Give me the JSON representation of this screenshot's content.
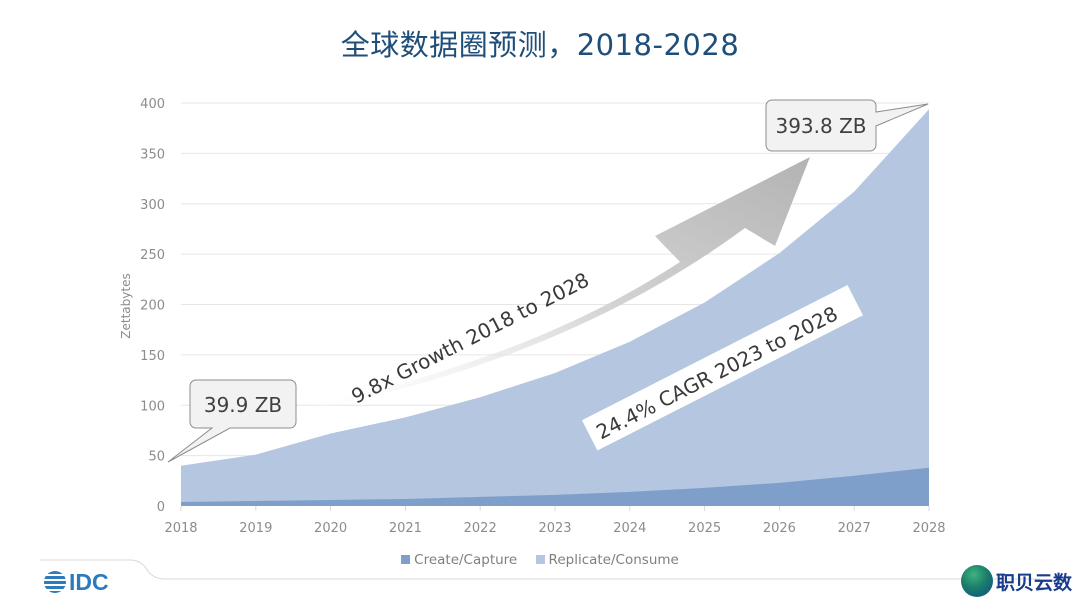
{
  "title": "全球数据圈预测，2018-2028",
  "chart_data": {
    "type": "area",
    "stacked": true,
    "title": "全球数据圈预测，2018-2028",
    "xlabel": "",
    "ylabel": "Zettabytes",
    "ylim": [
      0,
      400
    ],
    "yticks": [
      0,
      50,
      100,
      150,
      200,
      250,
      300,
      350,
      400
    ],
    "categories": [
      "2018",
      "2019",
      "2020",
      "2021",
      "2022",
      "2023",
      "2024",
      "2025",
      "2026",
      "2027",
      "2028"
    ],
    "series": [
      {
        "name": "Create/Capture",
        "color": "#7f9fcb",
        "values": [
          4,
          5,
          6,
          7,
          9,
          11,
          14,
          18,
          23,
          30,
          38
        ]
      },
      {
        "name": "Replicate/Consume",
        "color": "#b4c6e0",
        "values": [
          35.9,
          46,
          66,
          81,
          99,
          121,
          149,
          184,
          228,
          282,
          355.8
        ]
      }
    ],
    "totals": [
      39.9,
      51,
      72,
      88,
      108,
      132,
      163,
      202,
      251,
      312,
      393.8
    ],
    "grid": true,
    "legend_position": "bottom",
    "annotations": [
      {
        "text": "39.9 ZB",
        "type": "callout",
        "target": "2018"
      },
      {
        "text": "393.8 ZB",
        "type": "callout",
        "target": "2028"
      },
      {
        "text": "9.8x Growth 2018 to 2028",
        "type": "arrow-label"
      },
      {
        "text": "24.4% CAGR 2023 to 2028",
        "type": "rotated-label"
      }
    ]
  },
  "callouts": {
    "start": "39.9 ZB",
    "end": "393.8 ZB"
  },
  "annotations": {
    "growth": "9.8x Growth 2018 to 2028",
    "cagr": "24.4% CAGR 2023 to 2028"
  },
  "axis": {
    "ylabel": "Zettabytes",
    "yticks": [
      "0",
      "50",
      "100",
      "150",
      "200",
      "250",
      "300",
      "350",
      "400"
    ],
    "xticks": [
      "2018",
      "2019",
      "2020",
      "2021",
      "2022",
      "2023",
      "2024",
      "2025",
      "2026",
      "2027",
      "2028"
    ]
  },
  "legend": [
    {
      "label": "Create/Capture",
      "color": "#7f9fcb"
    },
    {
      "label": "Replicate/Consume",
      "color": "#b4c6e0"
    }
  ],
  "footer": {
    "brand": "IDC",
    "watermark": "职贝云数"
  },
  "colors": {
    "title": "#1f4e79",
    "create": "#7f9fcb",
    "replicate": "#b4c6e0",
    "arrow": "#bdbdbd",
    "idc": "#2c7bbf"
  }
}
